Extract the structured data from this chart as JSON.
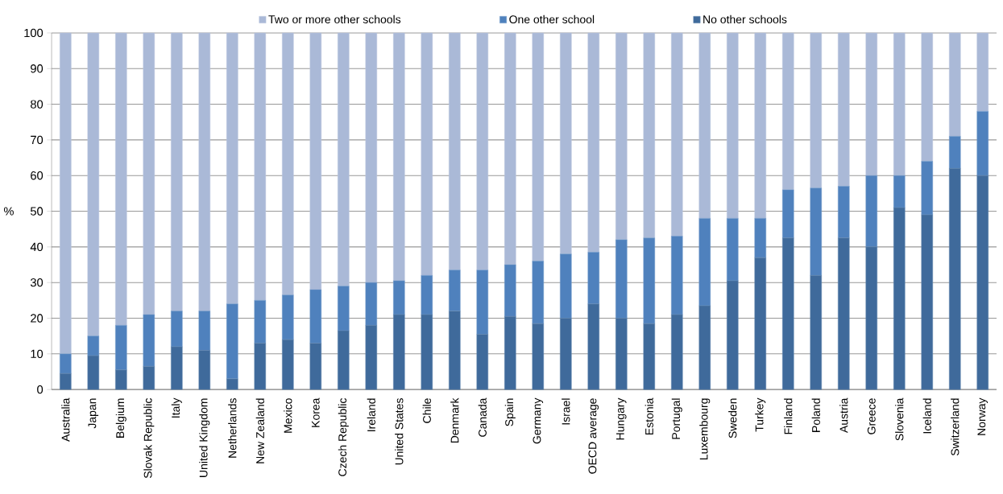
{
  "chart_data": {
    "type": "bar",
    "stacked": true,
    "ylabel": "%",
    "categories": [
      "Australia",
      "Japan",
      "Belgium",
      "Slovak Republic",
      "Italy",
      "United Kingdom",
      "Netherlands",
      "New Zealand",
      "Mexico",
      "Korea",
      "Czech Republic",
      "Ireland",
      "United States",
      "Chile",
      "Denmark",
      "Canada",
      "Spain",
      "Germany",
      "Israel",
      "OECD average",
      "Hungary",
      "Estonia",
      "Portugal",
      "Luxembourg",
      "Sweden",
      "Turkey",
      "Finland",
      "Poland",
      "Austria",
      "Greece",
      "Slovenia",
      "Iceland",
      "Switzerland",
      "Norway"
    ],
    "series": [
      {
        "name": "No other schools",
        "color": "#3f6a9b",
        "values": [
          4.5,
          9.5,
          5.5,
          6.5,
          12,
          11,
          3,
          13,
          14,
          13,
          16.5,
          18,
          21,
          21,
          22,
          15.5,
          20.5,
          18.5,
          20,
          24,
          20,
          18.5,
          21,
          23.5,
          30.5,
          37,
          42.5,
          32,
          42.5,
          40,
          51,
          49,
          62,
          60
        ]
      },
      {
        "name": "One other school",
        "color": "#4f81bd",
        "values": [
          5.5,
          5.5,
          12.5,
          14.5,
          10,
          11,
          21,
          12,
          12.5,
          15,
          12.5,
          12,
          9.5,
          11,
          11.5,
          18,
          14.5,
          17.5,
          18,
          14.5,
          22,
          24,
          22,
          24.5,
          17.5,
          11,
          13.5,
          24.5,
          14.5,
          20,
          9,
          15,
          9,
          18
        ]
      },
      {
        "name": "Two or more other schools",
        "color": "#aab9d7",
        "values": [
          90,
          85,
          82,
          79,
          78,
          78,
          76,
          75,
          73.5,
          72,
          71,
          70,
          69.5,
          68,
          66.5,
          66.5,
          65,
          64,
          62,
          61.5,
          58,
          57.5,
          57,
          52,
          52,
          52,
          44,
          43.5,
          43,
          40,
          40,
          36,
          29,
          22
        ]
      }
    ],
    "ylim": [
      0,
      100
    ],
    "yticks": [
      0,
      10,
      20,
      30,
      40,
      50,
      60,
      70,
      80,
      90,
      100
    ],
    "grid": "y",
    "legend": "top"
  }
}
